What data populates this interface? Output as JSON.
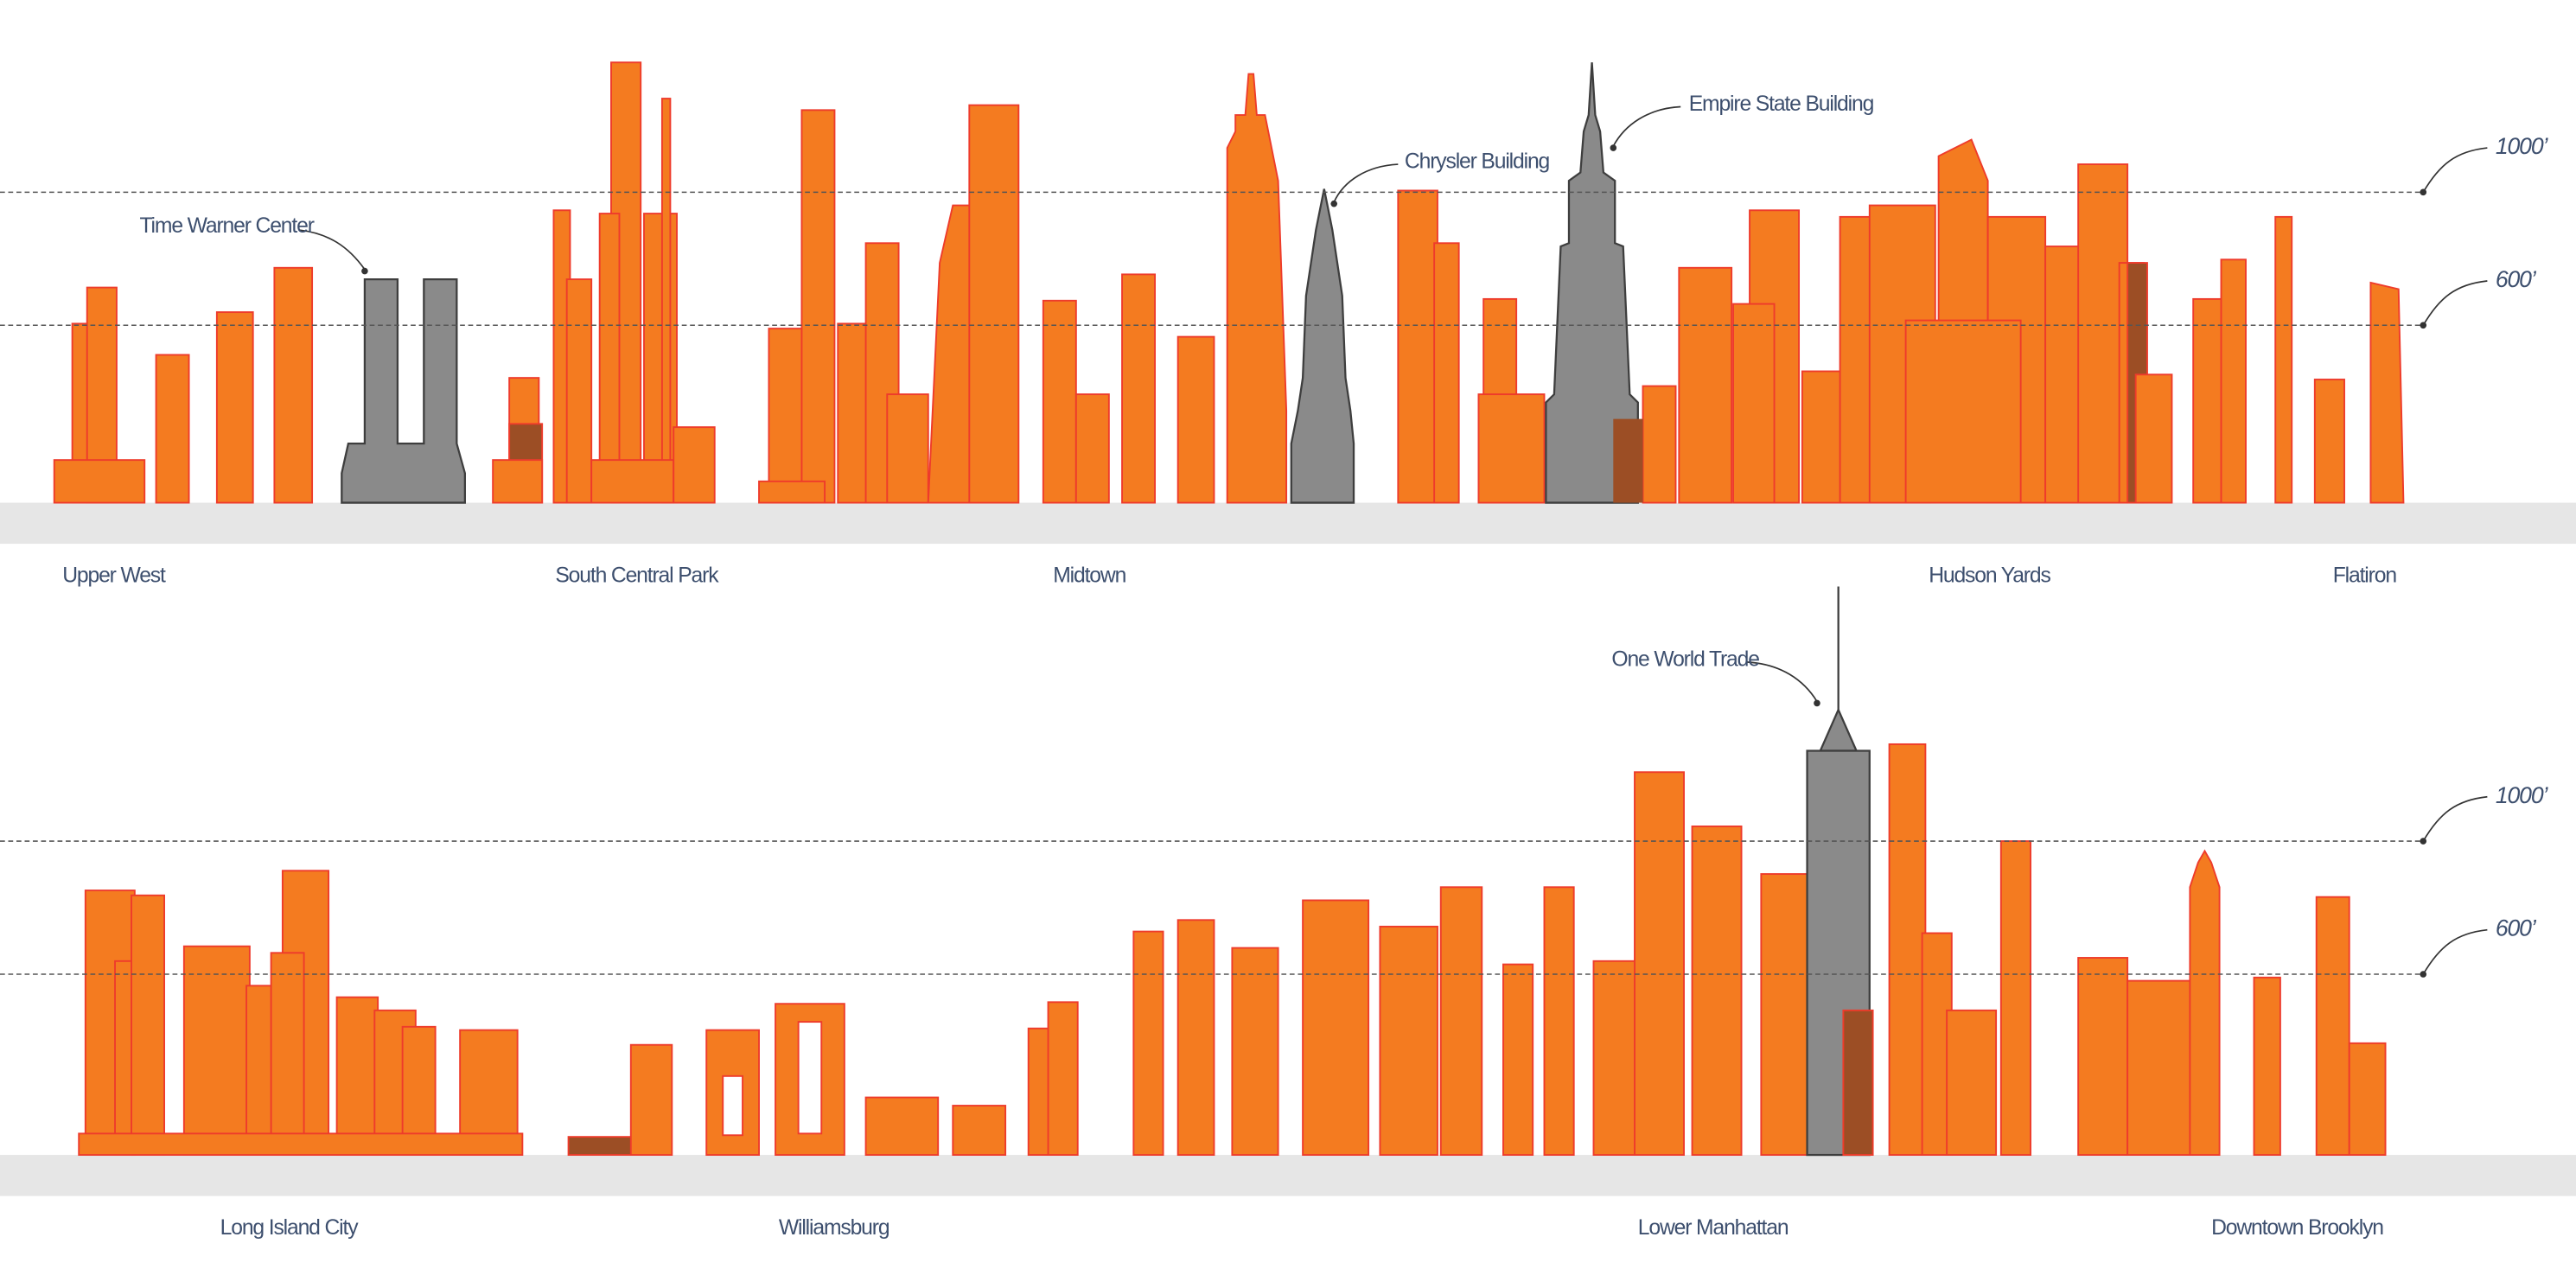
{
  "top_skyline": {
    "reference_lines": [
      "1000’",
      "600’"
    ],
    "annotations": [
      "Time Warner Center",
      "Chrysler Building",
      "Empire State Building"
    ],
    "neighborhoods": [
      "Upper West",
      "South Central Park",
      "Midtown",
      "Hudson Yards",
      "Flatiron"
    ]
  },
  "bottom_skyline": {
    "reference_lines": [
      "1000’",
      "600’"
    ],
    "annotations": [
      "One World Trade"
    ],
    "neighborhoods": [
      "Long Island City",
      "Williamsburg",
      "Lower Manhattan",
      "Downtown Brooklyn"
    ]
  }
}
